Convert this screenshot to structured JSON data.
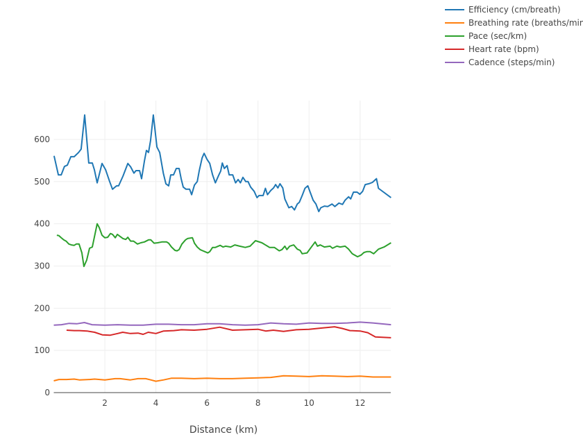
{
  "chart_data": {
    "type": "line",
    "title": "",
    "xlabel": "Distance (km)",
    "ylabel": "",
    "xlim": [
      0,
      13.2
    ],
    "ylim": [
      0,
      692
    ],
    "xticks": [
      2,
      4,
      6,
      8,
      10,
      12
    ],
    "yticks": [
      0,
      100,
      200,
      300,
      400,
      500,
      600
    ],
    "grid": true,
    "legend_position": "top-right",
    "series": [
      {
        "name": "Efficiency (cm/breath)",
        "color": "#1f77b4",
        "x": [
          0.01,
          0.18,
          0.29,
          0.42,
          0.53,
          0.67,
          0.8,
          0.97,
          1.07,
          1.21,
          1.37,
          1.51,
          1.59,
          1.7,
          1.89,
          2.03,
          2.19,
          2.3,
          2.46,
          2.54,
          2.71,
          2.9,
          3.01,
          3.14,
          3.22,
          3.36,
          3.44,
          3.55,
          3.63,
          3.71,
          3.79,
          3.9,
          4.04,
          4.15,
          4.29,
          4.39,
          4.5,
          4.58,
          4.69,
          4.8,
          4.91,
          4.99,
          5.07,
          5.18,
          5.32,
          5.4,
          5.51,
          5.62,
          5.7,
          5.81,
          5.89,
          6.0,
          6.11,
          6.22,
          6.33,
          6.46,
          6.54,
          6.6,
          6.68,
          6.79,
          6.87,
          7.01,
          7.12,
          7.22,
          7.31,
          7.41,
          7.52,
          7.61,
          7.71,
          7.85,
          7.96,
          8.04,
          8.2,
          8.29,
          8.37,
          8.5,
          8.61,
          8.69,
          8.78,
          8.86,
          8.97,
          9.05,
          9.21,
          9.32,
          9.43,
          9.54,
          9.62,
          9.73,
          9.84,
          9.95,
          10.05,
          10.16,
          10.27,
          10.38,
          10.46,
          10.6,
          10.73,
          10.9,
          11.01,
          11.17,
          11.31,
          11.41,
          11.55,
          11.63,
          11.74,
          11.88,
          11.99,
          12.1,
          12.2,
          12.34,
          12.48,
          12.64,
          12.72,
          13.21
        ],
        "y": [
          561,
          516,
          516,
          536,
          539,
          559,
          559,
          569,
          577,
          658,
          544,
          544,
          528,
          497,
          543,
          528,
          500,
          482,
          490,
          490,
          513,
          543,
          535,
          520,
          526,
          526,
          507,
          549,
          574,
          569,
          597,
          658,
          582,
          569,
          520,
          495,
          490,
          516,
          516,
          531,
          531,
          507,
          487,
          482,
          482,
          469,
          492,
          500,
          526,
          556,
          567,
          553,
          543,
          516,
          497,
          515,
          525,
          544,
          531,
          538,
          516,
          516,
          497,
          505,
          497,
          510,
          500,
          500,
          487,
          477,
          462,
          467,
          467,
          484,
          469,
          479,
          485,
          493,
          485,
          495,
          485,
          459,
          438,
          441,
          433,
          447,
          451,
          467,
          484,
          490,
          474,
          456,
          447,
          429,
          438,
          442,
          441,
          447,
          441,
          449,
          446,
          456,
          464,
          459,
          475,
          475,
          470,
          477,
          493,
          495,
          498,
          507,
          484,
          462
        ]
      },
      {
        "name": "Breathing rate (breaths/min)",
        "color": "#ff7f0e",
        "x": [
          0,
          0.2,
          0.5,
          0.8,
          1.0,
          1.4,
          1.6,
          2.0,
          2.4,
          2.6,
          3.0,
          3.3,
          3.6,
          3.8,
          4.0,
          4.3,
          4.6,
          5.0,
          5.5,
          6.0,
          6.5,
          7.0,
          7.5,
          8.0,
          8.5,
          9.0,
          9.5,
          10.0,
          10.5,
          11.0,
          11.5,
          12.0,
          12.5,
          13.21
        ],
        "y": [
          28,
          31,
          31,
          32,
          30,
          31,
          32,
          30,
          33,
          33,
          30,
          33,
          33,
          30,
          27,
          30,
          34,
          34,
          33,
          34,
          33,
          33,
          34,
          35,
          36,
          40,
          39,
          38,
          40,
          39,
          38,
          39,
          37,
          37
        ]
      },
      {
        "name": "Pace (sec/km)",
        "color": "#2ca02c",
        "x": [
          0.12,
          0.2,
          0.29,
          0.39,
          0.48,
          0.59,
          0.69,
          0.8,
          0.88,
          0.99,
          1.1,
          1.18,
          1.29,
          1.4,
          1.51,
          1.7,
          1.78,
          1.89,
          2.0,
          2.11,
          2.22,
          2.3,
          2.41,
          2.49,
          2.6,
          2.71,
          2.82,
          2.9,
          3.01,
          3.12,
          3.28,
          3.41,
          3.55,
          3.71,
          3.8,
          3.93,
          4.07,
          4.23,
          4.42,
          4.5,
          4.61,
          4.75,
          4.83,
          4.91,
          5.02,
          5.16,
          5.24,
          5.43,
          5.51,
          5.62,
          5.73,
          5.84,
          5.92,
          6.03,
          6.11,
          6.22,
          6.33,
          6.52,
          6.63,
          6.73,
          6.93,
          7.09,
          7.28,
          7.5,
          7.69,
          7.9,
          8.15,
          8.37,
          8.45,
          8.64,
          8.83,
          8.94,
          9.05,
          9.13,
          9.24,
          9.4,
          9.54,
          9.65,
          9.73,
          9.92,
          10.08,
          10.24,
          10.33,
          10.44,
          10.6,
          10.82,
          10.92,
          11.09,
          11.22,
          11.41,
          11.55,
          11.69,
          11.9,
          12.04,
          12.15,
          12.26,
          12.39,
          12.53,
          12.72,
          12.94,
          13.21
        ],
        "y": [
          373,
          372,
          367,
          362,
          359,
          352,
          350,
          349,
          352,
          352,
          331,
          299,
          314,
          342,
          345,
          400,
          391,
          373,
          367,
          368,
          377,
          375,
          367,
          375,
          370,
          365,
          363,
          368,
          359,
          359,
          352,
          355,
          357,
          362,
          362,
          354,
          355,
          357,
          357,
          354,
          345,
          337,
          336,
          339,
          352,
          362,
          365,
          367,
          354,
          345,
          339,
          336,
          334,
          331,
          334,
          344,
          344,
          349,
          345,
          347,
          345,
          350,
          347,
          344,
          347,
          360,
          355,
          347,
          344,
          344,
          336,
          339,
          347,
          339,
          347,
          350,
          340,
          337,
          329,
          331,
          344,
          357,
          347,
          350,
          345,
          347,
          342,
          347,
          345,
          347,
          340,
          329,
          322,
          326,
          332,
          334,
          334,
          329,
          340,
          345,
          355
        ]
      },
      {
        "name": "Heart rate (bpm)",
        "color": "#d62728",
        "x": [
          0.5,
          0.8,
          1.0,
          1.3,
          1.6,
          1.9,
          2.2,
          2.5,
          2.7,
          3.0,
          3.3,
          3.5,
          3.7,
          4.0,
          4.3,
          4.7,
          5.0,
          5.5,
          6.0,
          6.5,
          7.0,
          7.5,
          8.0,
          8.3,
          8.6,
          9.0,
          9.5,
          10.0,
          10.5,
          11.0,
          11.3,
          11.6,
          12.0,
          12.3,
          12.6,
          13.21
        ],
        "y": [
          148,
          147,
          147,
          146,
          143,
          137,
          136,
          140,
          143,
          140,
          141,
          138,
          143,
          140,
          146,
          147,
          149,
          148,
          150,
          155,
          148,
          149,
          150,
          146,
          148,
          145,
          149,
          150,
          153,
          156,
          152,
          147,
          146,
          142,
          132,
          130
        ]
      },
      {
        "name": "Cadence (steps/min)",
        "color": "#9467bd",
        "x": [
          0,
          0.3,
          0.6,
          0.9,
          1.2,
          1.5,
          2.0,
          2.5,
          3.0,
          3.5,
          4.0,
          4.5,
          5.0,
          5.5,
          6.0,
          6.5,
          7.0,
          7.5,
          8.0,
          8.5,
          9.0,
          9.5,
          10.0,
          10.5,
          11.0,
          11.5,
          12.0,
          12.5,
          13.21
        ],
        "y": [
          160,
          161,
          164,
          163,
          166,
          161,
          160,
          161,
          160,
          160,
          162,
          162,
          161,
          161,
          163,
          163,
          161,
          160,
          161,
          165,
          163,
          162,
          165,
          164,
          164,
          165,
          167,
          165,
          161
        ]
      }
    ]
  }
}
